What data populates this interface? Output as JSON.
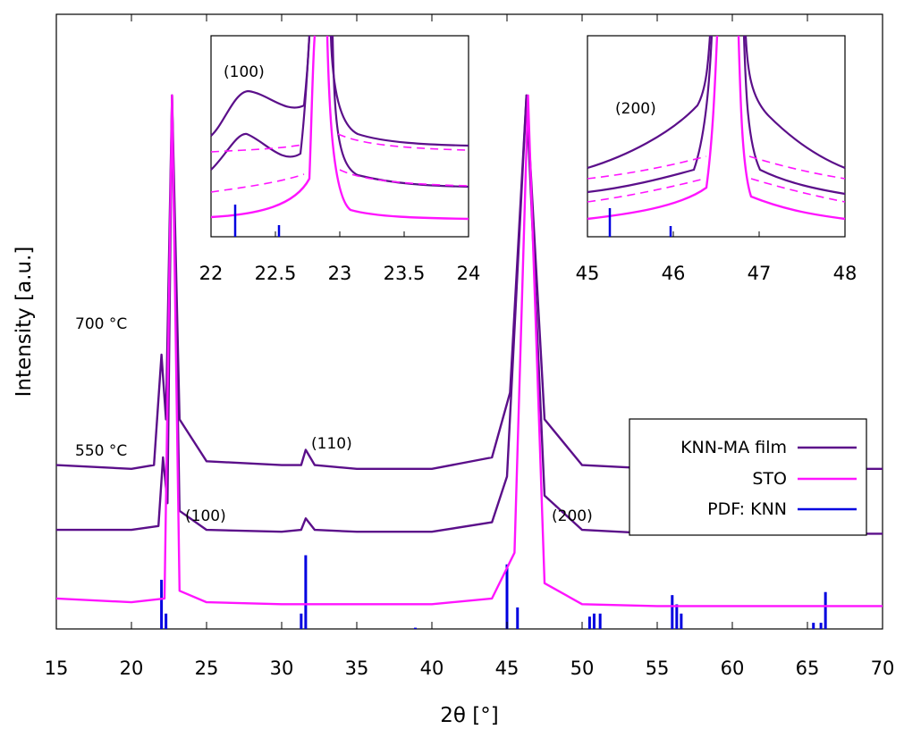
{
  "chart_data": {
    "type": "line",
    "xlabel": "2θ [°]",
    "ylabel": "Intensity [a.u.]",
    "xlim": [
      15,
      70
    ],
    "xticks": [
      15,
      20,
      25,
      30,
      35,
      40,
      45,
      50,
      55,
      60,
      65,
      70
    ],
    "yticks_shown": false,
    "legend": {
      "placement": "bottom-right",
      "entries": [
        {
          "label": "KNN-MA film",
          "color": "#5b0f8a"
        },
        {
          "label": "STO",
          "color": "#ff14ff"
        },
        {
          "label": "PDF: KNN",
          "color": "#0000e0"
        }
      ]
    },
    "series": [
      {
        "name": "700 °C",
        "color": "#5b0f8a",
        "baseline_label": "700 °C",
        "points": [
          [
            15,
            0.43
          ],
          [
            20,
            0.42
          ],
          [
            21.5,
            0.43
          ],
          [
            22.0,
            0.72
          ],
          [
            22.3,
            0.55
          ],
          [
            22.7,
            1.4
          ],
          [
            23.2,
            0.55
          ],
          [
            25,
            0.44
          ],
          [
            30,
            0.43
          ],
          [
            31.3,
            0.43
          ],
          [
            31.6,
            0.47
          ],
          [
            32.2,
            0.43
          ],
          [
            35,
            0.42
          ],
          [
            40,
            0.42
          ],
          [
            44,
            0.45
          ],
          [
            45.2,
            0.62
          ],
          [
            46.3,
            1.4
          ],
          [
            47.5,
            0.55
          ],
          [
            50,
            0.43
          ],
          [
            55,
            0.42
          ],
          [
            60,
            0.42
          ],
          [
            65,
            0.42
          ],
          [
            70,
            0.42
          ]
        ]
      },
      {
        "name": "550 °C",
        "color": "#5b0f8a",
        "baseline_label": "550 °C",
        "points": [
          [
            15,
            0.26
          ],
          [
            20,
            0.26
          ],
          [
            21.8,
            0.27
          ],
          [
            22.1,
            0.45
          ],
          [
            22.4,
            0.33
          ],
          [
            22.7,
            1.4
          ],
          [
            23.2,
            0.31
          ],
          [
            25,
            0.26
          ],
          [
            30,
            0.255
          ],
          [
            31.3,
            0.26
          ],
          [
            31.6,
            0.29
          ],
          [
            32.2,
            0.26
          ],
          [
            35,
            0.255
          ],
          [
            40,
            0.255
          ],
          [
            44,
            0.28
          ],
          [
            45.0,
            0.4
          ],
          [
            46.3,
            1.4
          ],
          [
            47.5,
            0.35
          ],
          [
            50,
            0.26
          ],
          [
            55,
            0.25
          ],
          [
            60,
            0.25
          ],
          [
            65,
            0.25
          ],
          [
            70,
            0.25
          ]
        ]
      },
      {
        "name": "STO",
        "color": "#ff14ff",
        "points": [
          [
            15,
            0.08
          ],
          [
            20,
            0.07
          ],
          [
            22.2,
            0.08
          ],
          [
            22.7,
            1.4
          ],
          [
            23.2,
            0.1
          ],
          [
            25,
            0.07
          ],
          [
            30,
            0.065
          ],
          [
            35,
            0.065
          ],
          [
            40,
            0.065
          ],
          [
            44,
            0.08
          ],
          [
            45.5,
            0.2
          ],
          [
            46.4,
            1.4
          ],
          [
            47.5,
            0.12
          ],
          [
            50,
            0.065
          ],
          [
            55,
            0.06
          ],
          [
            60,
            0.06
          ],
          [
            65,
            0.06
          ],
          [
            70,
            0.06
          ]
        ]
      }
    ],
    "reference_lines": {
      "name": "PDF: KNN",
      "color": "#0000e0",
      "x": [
        22.0,
        22.3,
        31.3,
        31.6,
        38.9,
        45.0,
        45.7,
        50.5,
        50.8,
        51.2,
        56.0,
        56.3,
        56.6,
        65.4,
        65.9,
        66.2
      ],
      "height": [
        0.08,
        0.025,
        0.025,
        0.12,
        0.002,
        0.105,
        0.035,
        0.02,
        0.025,
        0.025,
        0.055,
        0.04,
        0.025,
        0.01,
        0.01,
        0.06
      ]
    },
    "annotations": [
      {
        "text": "700 °C"
      },
      {
        "text": "550 °C"
      },
      {
        "text": "(110)"
      },
      {
        "text": "(100)"
      },
      {
        "text": "(200)"
      }
    ],
    "insets": [
      {
        "xlim": [
          22,
          24
        ],
        "xticks": [
          "22",
          "22.5",
          "23",
          "23.5",
          "24"
        ],
        "annotation": "(100)"
      },
      {
        "xlim": [
          45,
          48
        ],
        "xticks": [
          "45",
          "46",
          "47",
          "48"
        ],
        "annotation": "(200)"
      }
    ]
  }
}
